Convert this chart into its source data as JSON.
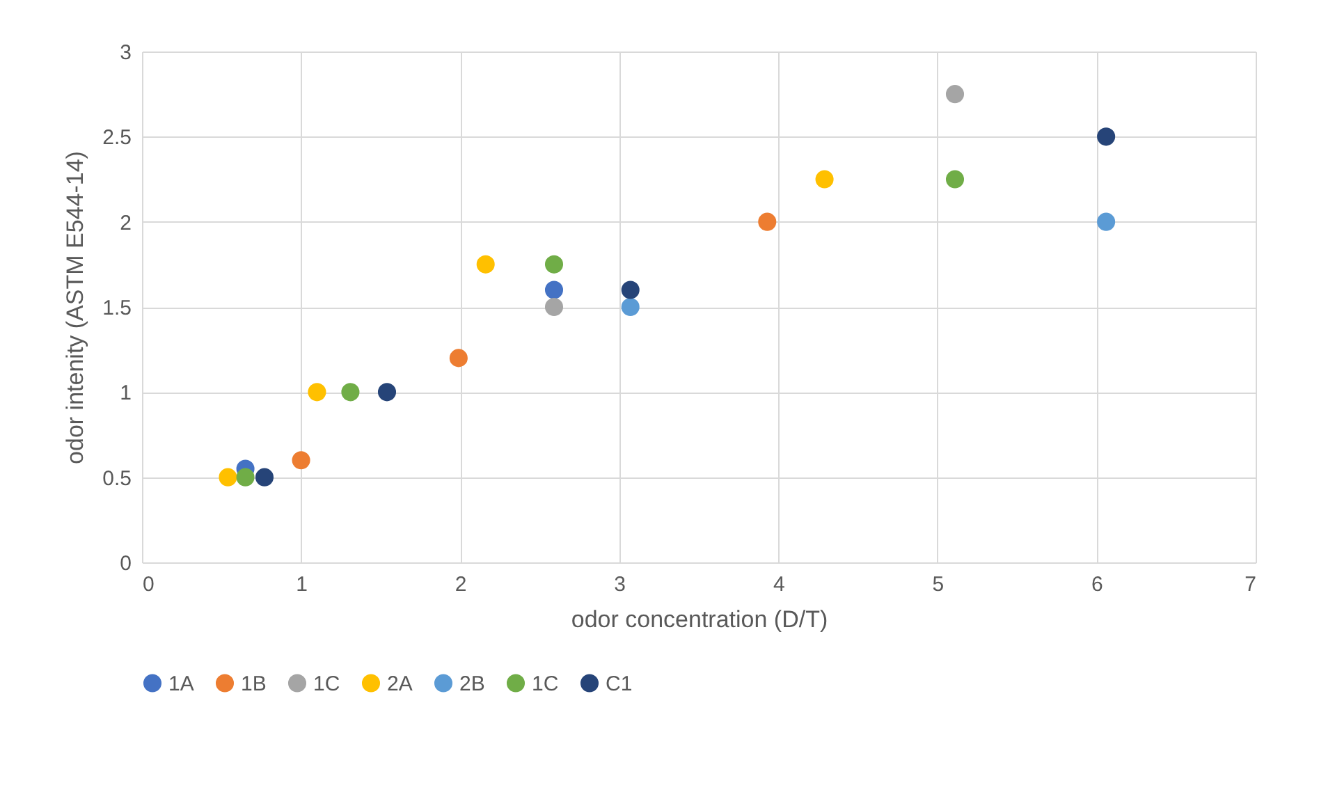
{
  "chart_data": {
    "type": "scatter",
    "xlabel": "odor concentration (D/T)",
    "ylabel": "odor intenity (ASTM E544-14)",
    "xlim": [
      0,
      7
    ],
    "xticks": [
      0,
      1,
      2,
      3,
      4,
      5,
      6,
      7
    ],
    "ylim": [
      0,
      3
    ],
    "yticks": [
      0,
      0.5,
      1,
      1.5,
      2,
      2.5,
      3
    ],
    "grid": true,
    "legend": "bottom",
    "marker": "circle",
    "series": [
      {
        "name": "1A",
        "color": "#4472c4",
        "x": [
          0.65,
          2.59
        ],
        "values": [
          0.55,
          1.6
        ]
      },
      {
        "name": "1B",
        "color": "#ed7d31",
        "x": [
          1.0,
          1.99,
          3.93
        ],
        "values": [
          0.6,
          1.2,
          2.0
        ]
      },
      {
        "name": "1C",
        "color": "#a5a5a5",
        "x": [
          2.59,
          5.11
        ],
        "values": [
          1.5,
          2.75
        ]
      },
      {
        "name": "2A",
        "color": "#ffc000",
        "x": [
          0.54,
          1.1,
          2.16,
          4.29
        ],
        "values": [
          0.5,
          1.0,
          1.75,
          2.25
        ]
      },
      {
        "name": "2B",
        "color": "#5b9bd5",
        "x": [
          3.07,
          6.06
        ],
        "values": [
          1.5,
          2.0
        ]
      },
      {
        "name": "1C",
        "color": "#70ad47",
        "x": [
          0.65,
          1.31,
          2.59,
          5.11
        ],
        "values": [
          0.5,
          1.0,
          1.75,
          2.25
        ]
      },
      {
        "name": "C1",
        "color": "#264478",
        "x": [
          0.77,
          1.54,
          3.07,
          6.06
        ],
        "values": [
          0.5,
          1.0,
          1.6,
          2.5
        ]
      }
    ]
  }
}
